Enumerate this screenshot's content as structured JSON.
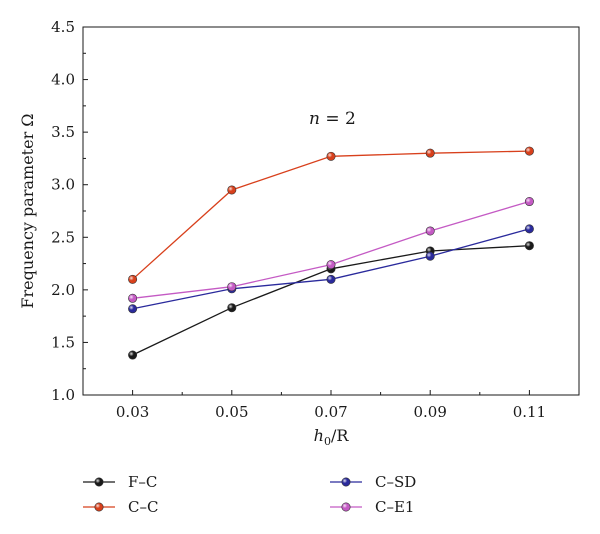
{
  "chart_data": {
    "type": "line",
    "x": [
      0.03,
      0.05,
      0.07,
      0.09,
      0.11
    ],
    "x_tick_labels": [
      "0.03",
      "0.05",
      "0.07",
      "0.09",
      "0.11"
    ],
    "xlim": [
      0.02,
      0.12
    ],
    "ylim": [
      1.0,
      4.5
    ],
    "y_ticks": [
      1.0,
      1.5,
      2.0,
      2.5,
      3.0,
      3.5,
      4.0,
      4.5
    ],
    "y_tick_labels": [
      "1.0",
      "1.5",
      "2.0",
      "2.5",
      "3.0",
      "3.5",
      "4.0",
      "4.5"
    ],
    "xlabel_italic": "h",
    "xlabel_sub": "0",
    "xlabel_rest": "/R",
    "ylabel": "Frequency parameter Ω",
    "annotation_italic": "n",
    "annotation_rest": " = 2",
    "grid": false,
    "legend_position": "bottom",
    "series": [
      {
        "name": "F–C",
        "color": "#1a1a1a",
        "values": [
          1.38,
          1.83,
          2.2,
          2.37,
          2.42
        ]
      },
      {
        "name": "C–C",
        "color": "#d8401c",
        "values": [
          2.1,
          2.95,
          3.27,
          3.3,
          3.32
        ]
      },
      {
        "name": "C–SD",
        "color": "#2a2a9c",
        "values": [
          1.82,
          2.01,
          2.1,
          2.32,
          2.58
        ]
      },
      {
        "name": "C–E1",
        "color": "#c45ac4",
        "values": [
          1.92,
          2.03,
          2.24,
          2.56,
          2.84
        ]
      }
    ]
  }
}
